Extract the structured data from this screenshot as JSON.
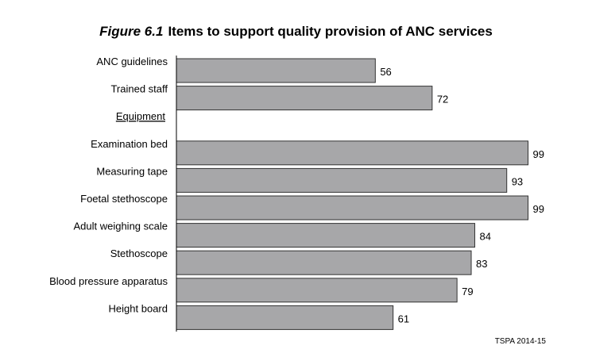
{
  "figure": {
    "number": "Figure 6.1",
    "title": "Items to support quality provision of ANC services",
    "source": "TSPA 2014-15"
  },
  "colors": {
    "bar": "#a7a7a9",
    "bar_stroke": "#333333",
    "axis": "#000000"
  },
  "chart_data": {
    "type": "bar",
    "orientation": "horizontal",
    "rows": [
      {
        "label": "ANC guidelines",
        "value": 56
      },
      {
        "label": "Trained staff",
        "value": 72
      },
      {
        "label": "Equipment",
        "value": null,
        "heading": true
      },
      {
        "label": "Examination bed",
        "value": 99
      },
      {
        "label": "Measuring tape",
        "value": 93
      },
      {
        "label": "Foetal stethoscope",
        "value": 99
      },
      {
        "label": "Adult weighing scale",
        "value": 84
      },
      {
        "label": "Stethoscope",
        "value": 83
      },
      {
        "label": "Blood pressure apparatus",
        "value": 79
      },
      {
        "label": "Height board",
        "value": 61
      }
    ],
    "xlim": [
      0,
      100
    ],
    "grid": false,
    "legend": "none"
  }
}
